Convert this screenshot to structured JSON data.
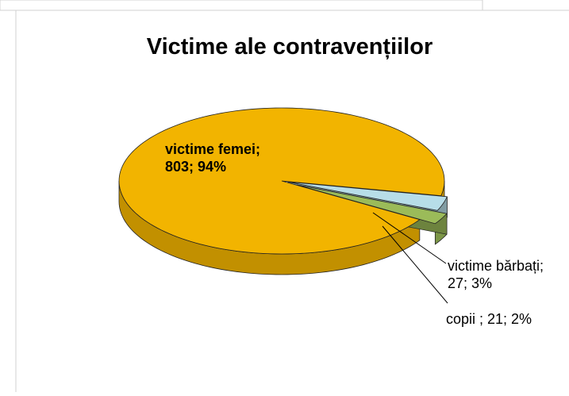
{
  "chart_data": {
    "type": "pie3d",
    "title": "Victime ale contravențiilor",
    "values": [
      803,
      27,
      21
    ],
    "value_labels": [
      [
        "victime femei;",
        "803; 94%"
      ],
      [
        "victime bărbați;",
        "27; 3%"
      ],
      [
        "copii ; 21; 2%"
      ]
    ],
    "colors": [
      "#f2b400",
      "#b7dde8",
      "#9bbb59"
    ]
  }
}
